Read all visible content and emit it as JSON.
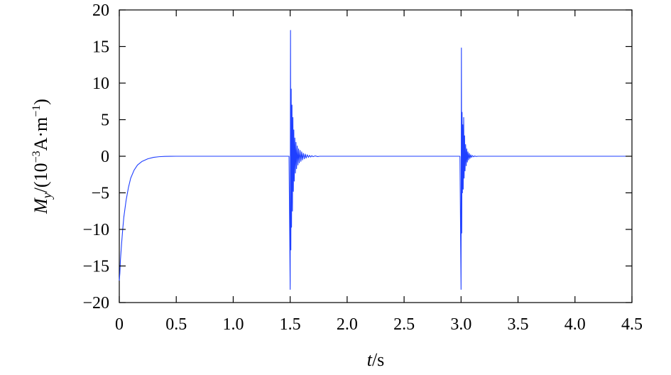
{
  "chart_data": {
    "type": "line",
    "title": "",
    "xlabel": {
      "var": "t",
      "unit": "/s"
    },
    "ylabel": {
      "var": "M",
      "sub": "y",
      "prefix": "/(10",
      "exp1": "−3",
      "mid": "A·m",
      "exp2": "−1",
      "suffix": ")"
    },
    "xlim": [
      0,
      4.5
    ],
    "ylim": [
      -20,
      20
    ],
    "xticks": [
      0,
      0.5,
      1.0,
      1.5,
      2.0,
      2.5,
      3.0,
      3.5,
      4.0,
      4.5
    ],
    "xtick_labels": [
      "0",
      "0.5",
      "1.0",
      "1.5",
      "2.0",
      "2.5",
      "3.0",
      "3.5",
      "4.0",
      "4.5"
    ],
    "yticks": [
      -20,
      -15,
      -10,
      -5,
      0,
      5,
      10,
      15,
      20
    ],
    "ytick_labels": [
      "−20",
      "−15",
      "−10",
      "−5",
      "0",
      "5",
      "10",
      "15",
      "20"
    ],
    "grid": false,
    "legend": "none",
    "line_color": "#1f3fff",
    "series": [
      {
        "x": [
          0,
          0.005,
          0.01,
          0.02,
          0.03,
          0.04,
          0.06,
          0.08,
          0.1,
          0.13,
          0.16,
          0.2,
          0.25,
          0.3,
          0.35,
          0.4,
          0.45,
          0.5,
          0.55,
          0.6,
          1.0,
          1.49,
          1.5,
          1.503,
          1.506,
          1.509,
          1.512,
          1.516,
          1.52,
          1.524,
          1.528,
          1.532,
          1.536,
          1.541,
          1.546,
          1.551,
          1.556,
          1.562,
          1.568,
          1.574,
          1.58,
          1.587,
          1.594,
          1.601,
          1.608,
          1.616,
          1.624,
          1.632,
          1.64,
          1.65,
          1.66,
          1.67,
          1.68,
          1.69,
          1.7,
          1.72,
          1.74,
          1.76,
          2.0,
          2.5,
          2.99,
          3.0,
          3.003,
          3.006,
          3.009,
          3.012,
          3.015,
          3.019,
          3.023,
          3.027,
          3.031,
          3.035,
          3.04,
          3.045,
          3.05,
          3.055,
          3.06,
          3.066,
          3.072,
          3.078,
          3.085,
          3.092,
          3.1,
          3.11,
          3.12,
          3.13,
          3.15,
          3.5,
          4.0,
          4.2,
          4.5
        ],
        "y": [
          -17,
          -16,
          -14.2,
          -12,
          -10,
          -8.3,
          -6,
          -4.3,
          -3,
          -1.9,
          -1.2,
          -0.7,
          -0.35,
          -0.15,
          -0.06,
          -0.02,
          -0.01,
          0,
          0,
          0,
          0,
          0,
          -18.2,
          17.2,
          -12.8,
          9.2,
          -9.7,
          7.0,
          -7.5,
          5.3,
          -4.8,
          3.6,
          -3.4,
          2.5,
          -2.3,
          1.9,
          -1.7,
          1.4,
          -1.2,
          1.0,
          -0.9,
          0.8,
          -0.7,
          0.6,
          -0.5,
          0.4,
          -0.35,
          0.3,
          -0.25,
          0.2,
          -0.15,
          0.12,
          -0.1,
          0.08,
          -0.06,
          0.05,
          -0.04,
          0,
          0,
          0,
          0,
          -18.2,
          14.8,
          -10.5,
          6.0,
          -5.0,
          4.3,
          -4.5,
          5.3,
          -3.0,
          2.8,
          -2.0,
          1.6,
          -1.3,
          1.0,
          -0.8,
          0.6,
          -0.5,
          0.4,
          -0.3,
          0.2,
          -0.15,
          0.1,
          -0.08,
          0.05,
          -0.03,
          0,
          0,
          0,
          0,
          0
        ]
      }
    ]
  }
}
